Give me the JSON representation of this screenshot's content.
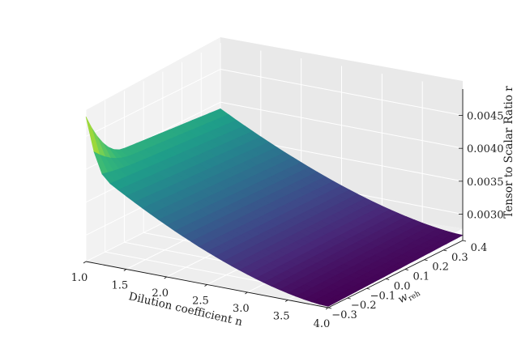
{
  "chart_data": {
    "type": "surface",
    "title": "",
    "x": {
      "label": "Dilution coefficient n",
      "ticks": [
        "1.0",
        "1.5",
        "2.0",
        "2.5",
        "3.0",
        "3.5",
        "4.0"
      ],
      "range": [
        1.0,
        4.0
      ]
    },
    "y": {
      "label": "w_reh",
      "label_main": "w",
      "label_sub": "reh",
      "ticks": [
        "−0.3",
        "−0.2",
        "−0.1",
        "0.0",
        "0.1",
        "0.2",
        "0.3",
        "0.4"
      ],
      "range": [
        -0.3,
        0.4
      ]
    },
    "z": {
      "label": "Tensor to Scalar Ratio r",
      "ticks": [
        "0.0030",
        "0.0035",
        "0.0040",
        "0.0045"
      ],
      "range": [
        0.0026,
        0.0049
      ]
    },
    "surface_samples": [
      {
        "n": 1.0,
        "w_reh": -0.3,
        "r": 0.00408
      },
      {
        "n": 1.0,
        "w_reh": 0.4,
        "r": 0.0039
      },
      {
        "n": 1.0,
        "w_reh": -0.3,
        "r_corner_peak": 0.0048
      },
      {
        "n": 4.0,
        "w_reh": -0.3,
        "r": 0.00262
      },
      {
        "n": 4.0,
        "w_reh": 0.4,
        "r": 0.00268
      }
    ],
    "colormap": "viridis",
    "grid": true
  }
}
